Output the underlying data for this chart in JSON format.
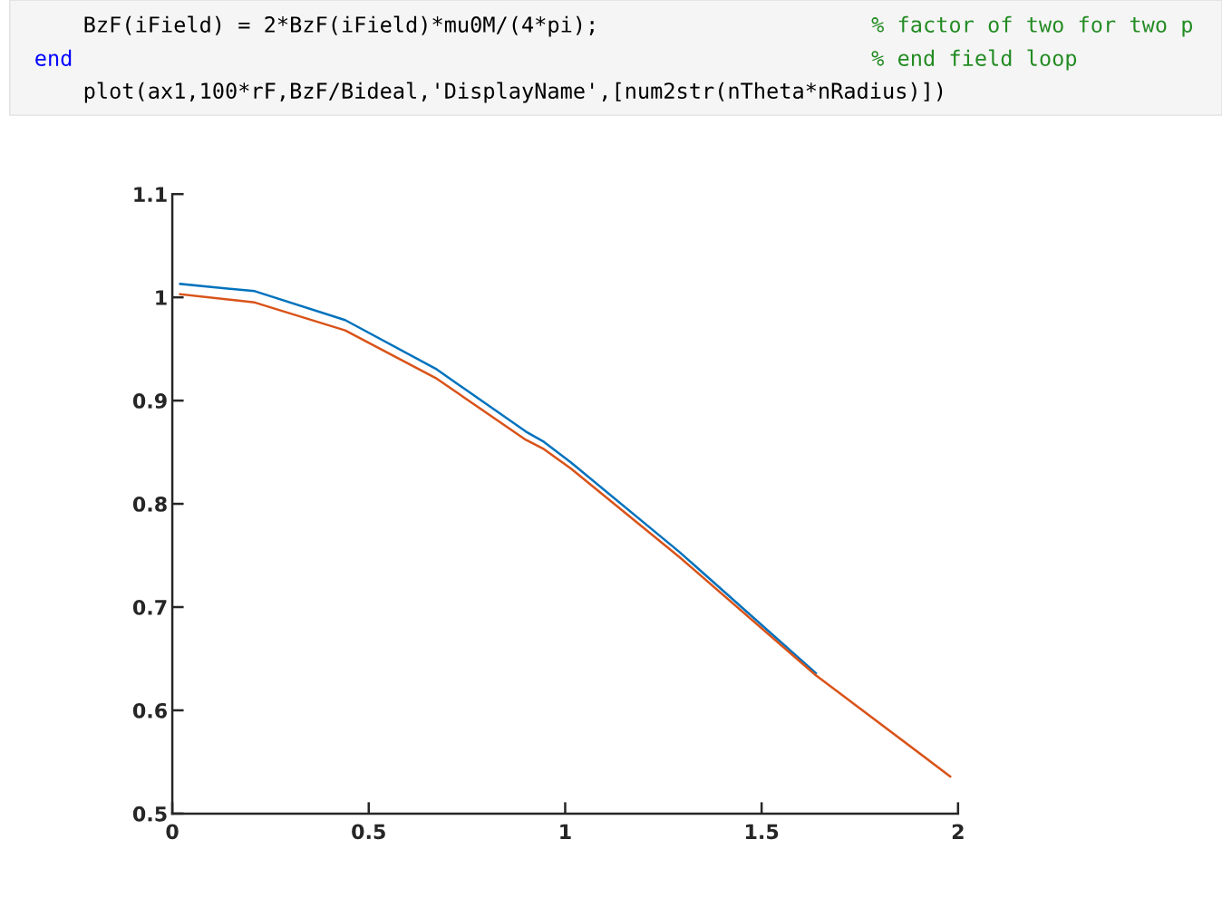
{
  "chart_data": {
    "type": "line",
    "annotations": [
      "    BzF(iField) = 2*BzF(iField)*mu0M/(4*pi);",
      "% factor of two for two p",
      "end",
      "% end field loop",
      "    plot(ax1,100*rF,BzF/Bideal,'DisplayName',[num2str(nTheta*nRadius)])"
    ],
    "series": [
      {
        "color": "#0072bd",
        "x": [
          0.02,
          0.21,
          0.44,
          0.67,
          0.9,
          0.946,
          1.015,
          1.292,
          1.638
        ],
        "values": [
          1.013,
          1.006,
          0.978,
          0.931,
          0.87,
          0.86,
          0.84,
          0.753,
          0.636
        ]
      },
      {
        "color": "#d95319",
        "x": [
          0.02,
          0.21,
          0.44,
          0.67,
          0.9,
          0.946,
          1.015,
          1.292,
          1.638,
          1.98
        ],
        "values": [
          1.003,
          0.995,
          0.968,
          0.922,
          0.862,
          0.853,
          0.834,
          0.748,
          0.634,
          0.536
        ]
      }
    ],
    "xlim": [
      0,
      2
    ],
    "xticks": [
      0,
      0.5,
      1,
      1.5,
      2
    ],
    "ylim": [
      0.5,
      1.1
    ],
    "yticks": [
      0.5,
      0.6,
      0.7,
      0.8,
      0.9,
      1,
      1.1
    ],
    "grid": false,
    "legend": false
  }
}
